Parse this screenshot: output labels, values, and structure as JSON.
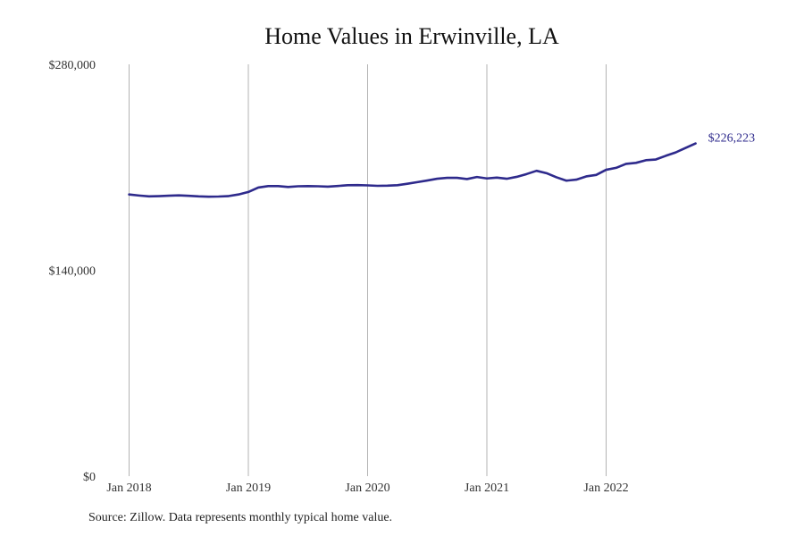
{
  "chart_data": {
    "type": "line",
    "title": "Home Values in Erwinville, LA",
    "xlabel": "",
    "ylabel": "",
    "x_tick_labels": [
      "Jan 2018",
      "Jan 2019",
      "Jan 2020",
      "Jan 2021",
      "Jan 2022"
    ],
    "y_tick_labels": [
      "$0",
      "$140,000",
      "$280,000"
    ],
    "ylim": [
      0,
      280000
    ],
    "y_ticks": [
      0,
      140000,
      280000
    ],
    "xlim": [
      "2018-01",
      "2022-12"
    ],
    "grid": {
      "vertical": true,
      "horizontal": false
    },
    "legend": "none",
    "series_color": "#2e2a8c",
    "grid_color": "#b3b3b3",
    "end_label": "$226,223",
    "series": [
      {
        "x": [
          "2018-01",
          "2018-02",
          "2018-03",
          "2018-04",
          "2018-05",
          "2018-06",
          "2018-07",
          "2018-08",
          "2018-09",
          "2018-10",
          "2018-11",
          "2018-12",
          "2019-01",
          "2019-02",
          "2019-03",
          "2019-04",
          "2019-05",
          "2019-06",
          "2019-07",
          "2019-08",
          "2019-09",
          "2019-10",
          "2019-11",
          "2019-12",
          "2020-01",
          "2020-02",
          "2020-03",
          "2020-04",
          "2020-05",
          "2020-06",
          "2020-07",
          "2020-08",
          "2020-09",
          "2020-10",
          "2020-11",
          "2020-12",
          "2021-01",
          "2021-02",
          "2021-03",
          "2021-04",
          "2021-05",
          "2021-06",
          "2021-07",
          "2021-08",
          "2021-09",
          "2021-10",
          "2021-11",
          "2021-12",
          "2022-01",
          "2022-02",
          "2022-03",
          "2022-04",
          "2022-05",
          "2022-06",
          "2022-07",
          "2022-08",
          "2022-09",
          "2022-10"
        ],
        "values": [
          191500,
          190800,
          190200,
          190400,
          190700,
          190900,
          190600,
          190200,
          190000,
          190100,
          190400,
          191500,
          193200,
          196200,
          197200,
          197200,
          196600,
          197100,
          197200,
          197100,
          196800,
          197300,
          197800,
          197900,
          197700,
          197400,
          197500,
          197800,
          198800,
          199900,
          201000,
          202200,
          202800,
          202800,
          202000,
          203400,
          202400,
          203000,
          202200,
          203500,
          205400,
          207600,
          206000,
          203200,
          200900,
          201600,
          203800,
          204800,
          208300,
          209600,
          212300,
          213000,
          214800,
          215300,
          217800,
          220100,
          223200,
          226223
        ]
      }
    ]
  },
  "source_note": "Source: Zillow. Data represents monthly typical home value."
}
